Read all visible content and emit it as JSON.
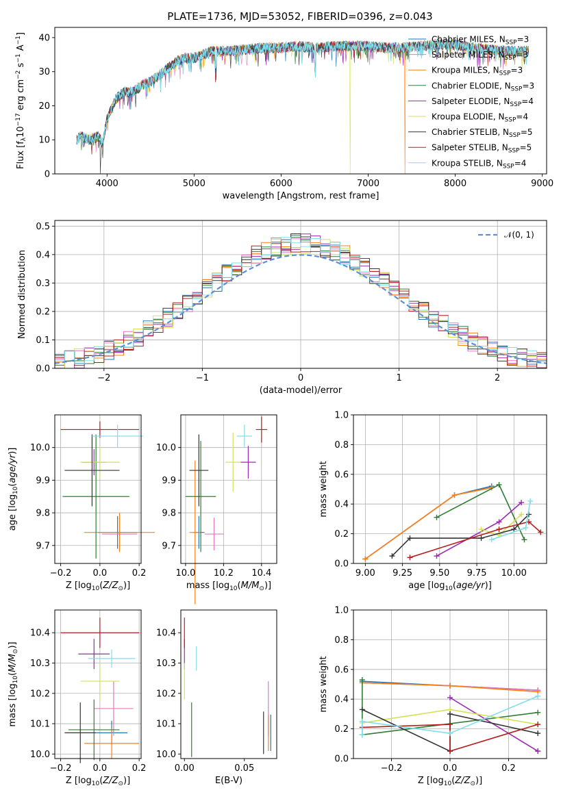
{
  "figure_title": "PLATE=1736, MJD=53052, FIBERID=0396, z=0.043",
  "colors": {
    "Chabrier MILES": "#1f77b4",
    "Salpeter MILES": "#e377c2",
    "Kroupa MILES": "#ff7f0e",
    "Chabrier ELODIE": "#2e7d32",
    "Salpeter ELODIE": "#9c27b0",
    "Kroupa ELODIE": "#d4e157",
    "Chabrier STELIB": "#333333",
    "Salpeter STELIB": "#b71c1c",
    "Kroupa STELIB": "#80deea"
  },
  "chart_data": [
    {
      "id": "spectrum",
      "type": "line",
      "xlabel": "wavelength [Angstrom, rest frame]",
      "ylabel": "Flux [f_λ 10^-17 erg cm^-2 s^-1 A^-1]",
      "xlim": [
        3400,
        9050
      ],
      "ylim": [
        0,
        43
      ],
      "xticks": [
        4000,
        5000,
        6000,
        7000,
        8000,
        9000
      ],
      "yticks": [
        0,
        10,
        20,
        30,
        40
      ],
      "grid": false,
      "legend_position": "right",
      "continuum": {
        "x": [
          3650,
          3700,
          3800,
          3900,
          3950,
          4000,
          4050,
          4100,
          4200,
          4300,
          4400,
          4500,
          4600,
          4700,
          4800,
          4900,
          5000,
          5100,
          5200,
          5300,
          5400,
          5600,
          5800,
          6000,
          6200,
          6400,
          6600,
          6800,
          7000,
          7200,
          7400,
          7600,
          7800,
          8000,
          8200,
          8400,
          8600,
          8800
        ],
        "y": [
          10,
          11,
          10,
          11,
          9,
          16,
          19,
          22,
          24,
          24,
          26,
          27,
          29,
          31,
          33,
          34,
          34,
          35,
          36,
          36,
          36,
          36.5,
          37,
          37,
          37.5,
          37,
          37.5,
          37.5,
          37.5,
          37,
          37,
          37.5,
          38,
          38,
          37,
          36.5,
          36,
          36
        ]
      },
      "dropouts": [
        {
          "series": "Chabrier STELIB",
          "x": 3920
        },
        {
          "series": "Kroupa ELODIE",
          "x": 6790
        },
        {
          "series": "Kroupa MILES",
          "x": 7420
        }
      ],
      "series": [
        {
          "name": "Chabrier MILES",
          "nssp": "3"
        },
        {
          "name": "Salpeter MILES",
          "nssp": "3"
        },
        {
          "name": "Kroupa MILES",
          "nssp": "3"
        },
        {
          "name": "Chabrier ELODIE",
          "nssp": "3"
        },
        {
          "name": "Salpeter ELODIE",
          "nssp": "4"
        },
        {
          "name": "Kroupa ELODIE",
          "nssp": "4"
        },
        {
          "name": "Chabrier STELIB",
          "nssp": "5"
        },
        {
          "name": "Salpeter STELIB",
          "nssp": "5"
        },
        {
          "name": "Kroupa STELIB",
          "nssp": "4"
        }
      ]
    },
    {
      "id": "residuals",
      "type": "histogram",
      "xlabel": "(data-model)/error",
      "ylabel": "Normed distribution",
      "xlim": [
        -2.5,
        2.5
      ],
      "ylim": [
        0,
        0.52
      ],
      "xticks": [
        -2,
        -1,
        0,
        1,
        2
      ],
      "yticks": [
        0.0,
        0.1,
        0.2,
        0.3,
        0.4,
        0.5
      ],
      "grid": true,
      "legend": "𝒩(0, 1)",
      "legend_position": "top-right",
      "bin_width": 0.1
    },
    {
      "id": "age_vs_Z",
      "type": "errorbar",
      "xlabel": "Z [log10(Z/Z⊙)]",
      "ylabel": "age  [log10(age/yr)]",
      "xlim": [
        -0.23,
        0.21
      ],
      "ylim": [
        9.645,
        10.1
      ],
      "xticks": [
        -0.2,
        0.0,
        0.2
      ],
      "yticks": [
        9.7,
        9.8,
        9.9,
        10.0
      ],
      "grid": true,
      "points": [
        {
          "series": "Chabrier MILES",
          "x": 0.09,
          "y": 9.74,
          "xerr": 0.1,
          "yerr": 0.05
        },
        {
          "series": "Salpeter MILES",
          "x": 0.1,
          "y": 9.735,
          "xerr": 0.09,
          "yerr": 0.05
        },
        {
          "series": "Kroupa MILES",
          "x": 0.1,
          "y": 9.74,
          "xerr": 0.18,
          "yerr": 0.06
        },
        {
          "series": "Chabrier ELODIE",
          "x": -0.02,
          "y": 9.85,
          "xerr": 0.17,
          "yerr": 0.19
        },
        {
          "series": "Salpeter ELODIE",
          "x": -0.03,
          "y": 9.955,
          "xerr": 0.06,
          "yerr": 0.04
        },
        {
          "series": "Kroupa ELODIE",
          "x": 0.0,
          "y": 9.955,
          "xerr": 0.1,
          "yerr": 0.05
        },
        {
          "series": "Chabrier STELIB",
          "x": -0.04,
          "y": 9.93,
          "xerr": 0.14,
          "yerr": 0.11
        },
        {
          "series": "Salpeter STELIB",
          "x": 0.0,
          "y": 10.055,
          "xerr": 0.2,
          "yerr": 0.025
        },
        {
          "series": "Kroupa STELIB",
          "x": 0.09,
          "y": 10.035,
          "xerr": 0.13,
          "yerr": 0.035
        }
      ]
    },
    {
      "id": "age_vs_mass",
      "type": "errorbar",
      "xlabel": "mass [log10(M/M⊙)]",
      "ylabel": "",
      "xlim": [
        9.975,
        10.48
      ],
      "ylim": [
        9.645,
        10.1
      ],
      "xticks": [
        10.0,
        10.2,
        10.4
      ],
      "yticks": [
        9.7,
        9.8,
        9.9,
        10.0
      ],
      "grid": true,
      "points": [
        {
          "series": "Chabrier MILES",
          "x": 10.07,
          "y": 9.74,
          "xerr": 0.03,
          "yerr": 0.05
        },
        {
          "series": "Salpeter MILES",
          "x": 10.15,
          "y": 9.735,
          "xerr": 0.05,
          "yerr": 0.05
        },
        {
          "series": "Kroupa MILES",
          "x": 10.05,
          "y": 9.74,
          "xerr": 0.03,
          "yerr": 0.22
        },
        {
          "series": "Chabrier ELODIE",
          "x": 10.08,
          "y": 9.85,
          "xerr": 0.08,
          "yerr": 0.17
        },
        {
          "series": "Salpeter ELODIE",
          "x": 10.33,
          "y": 9.955,
          "xerr": 0.04,
          "yerr": 0.05
        },
        {
          "series": "Kroupa ELODIE",
          "x": 10.25,
          "y": 9.955,
          "xerr": 0.04,
          "yerr": 0.09
        },
        {
          "series": "Chabrier STELIB",
          "x": 10.07,
          "y": 9.93,
          "xerr": 0.05,
          "yerr": 0.11
        },
        {
          "series": "Salpeter STELIB",
          "x": 10.4,
          "y": 10.055,
          "xerr": 0.03,
          "yerr": 0.04
        },
        {
          "series": "Kroupa STELIB",
          "x": 10.31,
          "y": 10.035,
          "xerr": 0.04,
          "yerr": 0.035
        }
      ]
    },
    {
      "id": "weight_vs_age",
      "type": "line",
      "xlabel": "age  [log10(age/yr)]",
      "ylabel": "mass weight",
      "xlim": [
        8.92,
        10.22
      ],
      "ylim": [
        0,
        1
      ],
      "xticks": [
        9.0,
        9.25,
        9.5,
        9.75,
        10.0
      ],
      "yticks": [
        0.0,
        0.2,
        0.4,
        0.6,
        0.8,
        1.0
      ],
      "grid": true,
      "series": [
        {
          "name": "Chabrier MILES",
          "x": [
            9.0,
            9.6,
            9.85
          ],
          "y": [
            0.03,
            0.46,
            0.52
          ]
        },
        {
          "name": "Salpeter MILES",
          "x": [
            9.0,
            9.6,
            9.85
          ],
          "y": [
            0.03,
            0.46,
            0.51
          ]
        },
        {
          "name": "Kroupa MILES",
          "x": [
            9.0,
            9.6,
            9.85
          ],
          "y": [
            0.03,
            0.46,
            0.51
          ]
        },
        {
          "name": "Chabrier ELODIE",
          "x": [
            9.48,
            9.9,
            10.07
          ],
          "y": [
            0.31,
            0.53,
            0.16
          ]
        },
        {
          "name": "Salpeter ELODIE",
          "x": [
            9.48,
            9.9,
            10.05
          ],
          "y": [
            0.05,
            0.28,
            0.41
          ]
        },
        {
          "name": "Kroupa ELODIE",
          "x": [
            9.78,
            9.9,
            10.05
          ],
          "y": [
            0.23,
            0.19,
            0.33
          ]
        },
        {
          "name": "Chabrier STELIB",
          "x": [
            9.18,
            9.3,
            9.78,
            10.0,
            10.1
          ],
          "y": [
            0.05,
            0.17,
            0.17,
            0.23,
            0.33
          ]
        },
        {
          "name": "Salpeter STELIB",
          "x": [
            9.3,
            9.9,
            10.1,
            10.18
          ],
          "y": [
            0.04,
            0.23,
            0.28,
            0.21
          ]
        },
        {
          "name": "Kroupa STELIB",
          "x": [
            9.85,
            10.08,
            10.11
          ],
          "y": [
            0.16,
            0.24,
            0.42
          ]
        }
      ]
    },
    {
      "id": "mass_vs_Z",
      "type": "errorbar",
      "xlabel": "Z [log10(Z/Z⊙)]",
      "ylabel": "mass [log10(M/M⊙)]",
      "xlim": [
        -0.23,
        0.21
      ],
      "ylim": [
        9.985,
        10.475
      ],
      "xticks": [
        -0.2,
        0.0,
        0.2
      ],
      "yticks": [
        10.0,
        10.1,
        10.2,
        10.3,
        10.4
      ],
      "grid": true,
      "points": [
        {
          "series": "Chabrier MILES",
          "x": 0.06,
          "y": 10.07,
          "xerr": 0.08,
          "yerr": 0.04
        },
        {
          "series": "Salpeter MILES",
          "x": 0.07,
          "y": 10.15,
          "xerr": 0.1,
          "yerr": 0.09
        },
        {
          "series": "Kroupa MILES",
          "x": 0.06,
          "y": 10.035,
          "xerr": 0.14,
          "yerr": 0.05
        },
        {
          "series": "Chabrier ELODIE",
          "x": -0.03,
          "y": 10.08,
          "xerr": 0.13,
          "yerr": 0.1
        },
        {
          "series": "Salpeter ELODIE",
          "x": -0.03,
          "y": 10.33,
          "xerr": 0.08,
          "yerr": 0.05
        },
        {
          "series": "Kroupa ELODIE",
          "x": 0.0,
          "y": 10.24,
          "xerr": 0.1,
          "yerr": 0.06
        },
        {
          "series": "Chabrier STELIB",
          "x": -0.1,
          "y": 10.07,
          "xerr": 0.08,
          "yerr": 0.1
        },
        {
          "series": "Salpeter STELIB",
          "x": 0.0,
          "y": 10.4,
          "xerr": 0.2,
          "yerr": 0.05
        },
        {
          "series": "Kroupa STELIB",
          "x": 0.06,
          "y": 10.315,
          "xerr": 0.12,
          "yerr": 0.03
        }
      ]
    },
    {
      "id": "mass_vs_ebv",
      "type": "errorbar",
      "xlabel": "E(B-V)",
      "ylabel": "",
      "xlim": [
        -0.003,
        0.077
      ],
      "ylim": [
        9.985,
        10.475
      ],
      "xticks": [
        0.0,
        0.05
      ],
      "xtick_labels": [
        "0.00",
        "0.05"
      ],
      "yticks": [
        10.0,
        10.1,
        10.2,
        10.3,
        10.4
      ],
      "grid": false,
      "points": [
        {
          "series": "Chabrier MILES",
          "x": 0.072,
          "y": 10.07,
          "xerr": 0,
          "yerr": 0.06
        },
        {
          "series": "Salpeter MILES",
          "x": 0.07,
          "y": 10.15,
          "xerr": 0,
          "yerr": 0.09
        },
        {
          "series": "Kroupa MILES",
          "x": 0.07,
          "y": 10.07,
          "xerr": 0,
          "yerr": 0.06
        },
        {
          "series": "Chabrier ELODIE",
          "x": 0.006,
          "y": 10.08,
          "xerr": 0,
          "yerr": 0.09
        },
        {
          "series": "Salpeter ELODIE",
          "x": 0.0,
          "y": 10.33,
          "xerr": 0,
          "yerr": 0.05
        },
        {
          "series": "Kroupa ELODIE",
          "x": 0.0,
          "y": 10.24,
          "xerr": 0,
          "yerr": 0.06
        },
        {
          "series": "Chabrier STELIB",
          "x": 0.066,
          "y": 10.07,
          "xerr": 0,
          "yerr": 0.07
        },
        {
          "series": "Salpeter STELIB",
          "x": 0.0,
          "y": 10.4,
          "xerr": 0,
          "yerr": 0.05
        },
        {
          "series": "Kroupa STELIB",
          "x": 0.01,
          "y": 10.315,
          "xerr": 0,
          "yerr": 0.04
        }
      ]
    },
    {
      "id": "weight_vs_Z",
      "type": "line",
      "xlabel": "Z [log10(Z/Z⊙)]",
      "ylabel": "mass weight",
      "xlim": [
        -0.33,
        0.33
      ],
      "ylim": [
        0,
        1
      ],
      "xticks": [
        -0.2,
        0.0,
        0.2
      ],
      "yticks": [
        0.0,
        0.2,
        0.4,
        0.6,
        0.8,
        1.0
      ],
      "grid": true,
      "series": [
        {
          "name": "Chabrier MILES",
          "x": [
            -0.3,
            0.0,
            0.3
          ],
          "y": [
            0.52,
            0.49,
            0.46
          ]
        },
        {
          "name": "Salpeter MILES",
          "x": [
            -0.3,
            0.0,
            0.3
          ],
          "y": [
            0.51,
            0.49,
            0.46
          ]
        },
        {
          "name": "Kroupa MILES",
          "x": [
            -0.3,
            0.0,
            0.3
          ],
          "y": [
            0.51,
            0.49,
            0.45
          ]
        },
        {
          "name": "Chabrier ELODIE",
          "x": [
            -0.3,
            -0.3,
            0.3
          ],
          "y": [
            0.53,
            0.16,
            0.31
          ]
        },
        {
          "name": "Salpeter ELODIE",
          "x": [
            0.0,
            0.3,
            0.3
          ],
          "y": [
            0.41,
            0.05,
            0.05
          ]
        },
        {
          "name": "Kroupa ELODIE",
          "x": [
            -0.3,
            0.0,
            0.3
          ],
          "y": [
            0.24,
            0.33,
            0.23
          ]
        },
        {
          "name": "Chabrier STELIB",
          "x": [
            -0.3,
            0.0,
            0.0,
            0.3
          ],
          "y": [
            0.33,
            0.05,
            0.3,
            0.17
          ]
        },
        {
          "name": "Salpeter STELIB",
          "x": [
            -0.3,
            0.0,
            0.0,
            0.3
          ],
          "y": [
            0.21,
            0.23,
            0.05,
            0.23
          ]
        },
        {
          "name": "Kroupa STELIB",
          "x": [
            -0.3,
            -0.3,
            0.0,
            0.3
          ],
          "y": [
            0.16,
            0.25,
            0.17,
            0.42
          ]
        }
      ]
    }
  ]
}
